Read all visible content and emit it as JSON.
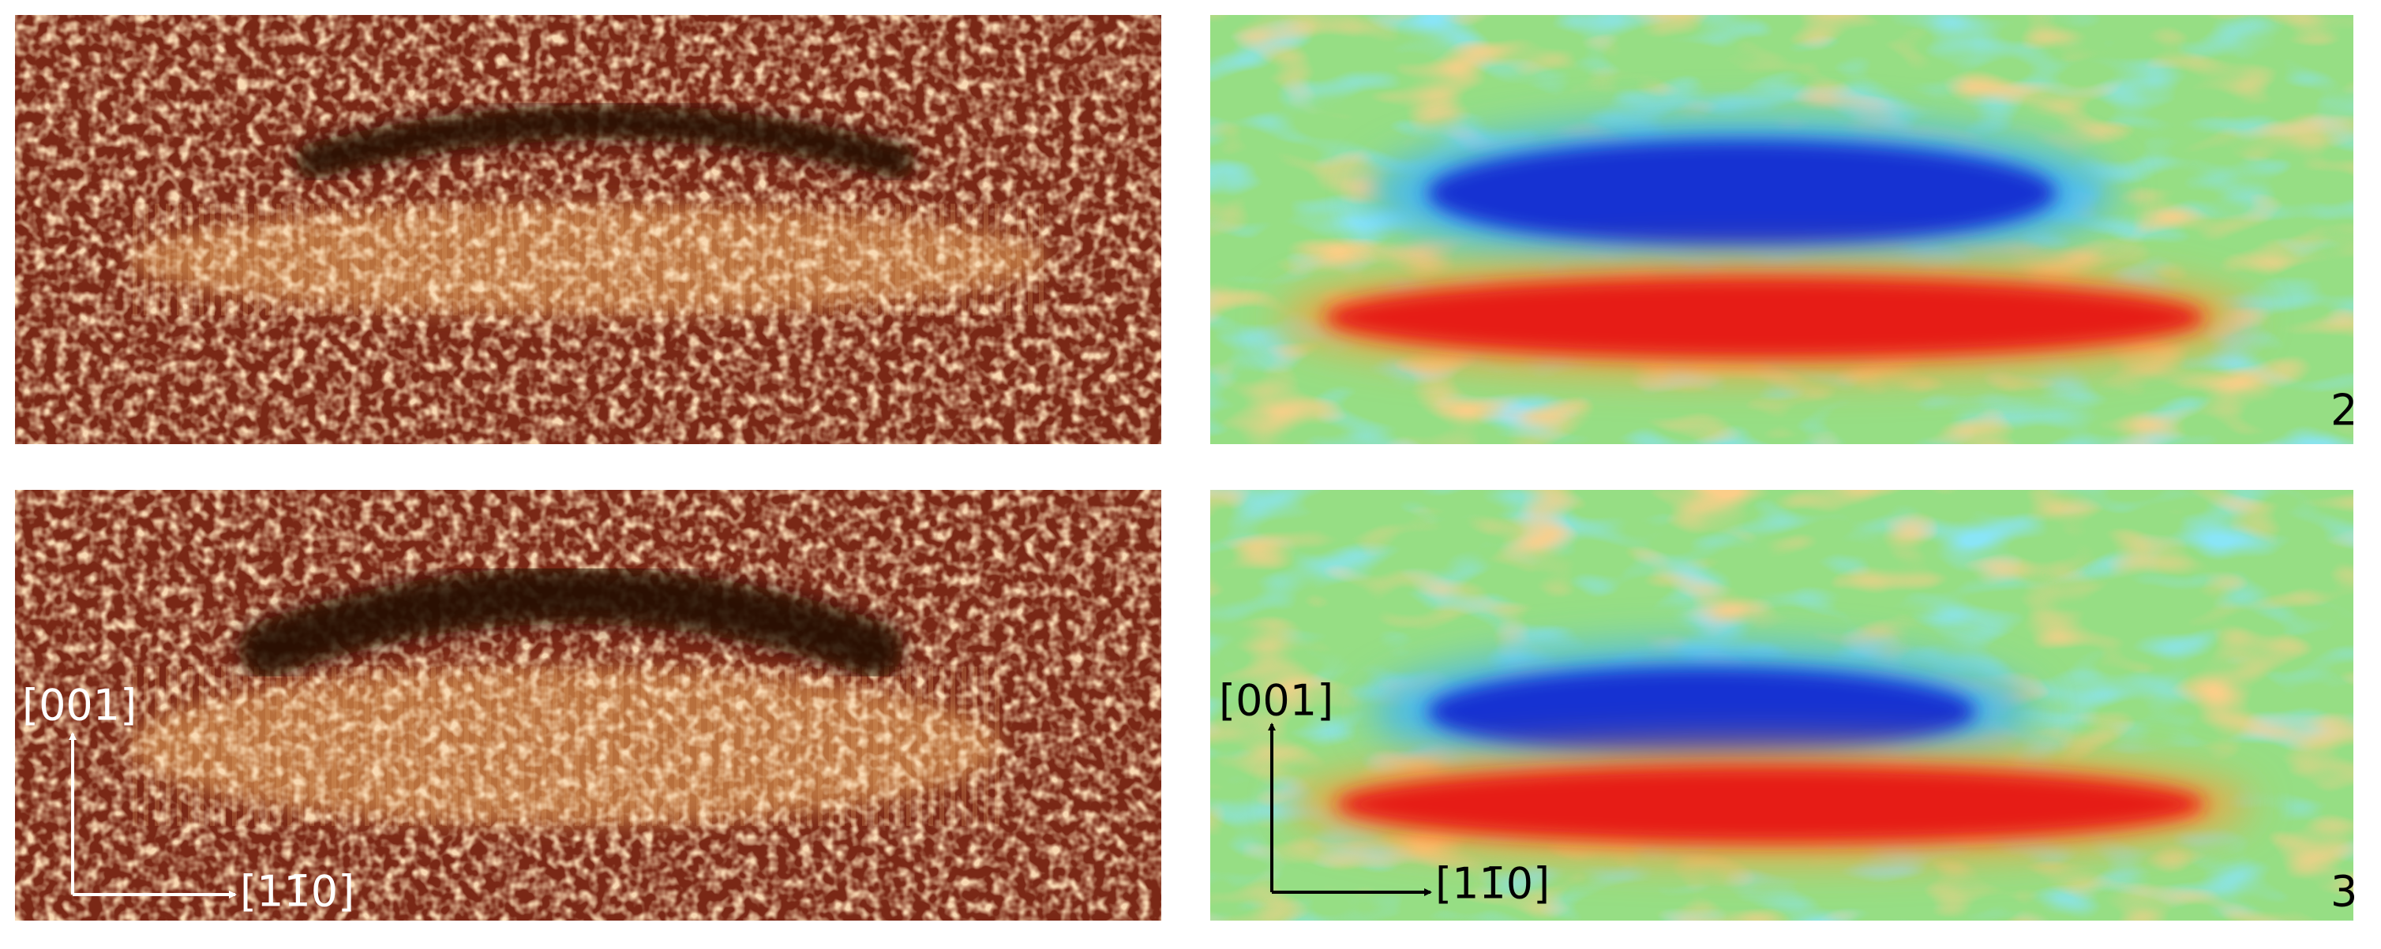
{
  "figure": {
    "panel_numbers": [
      "2",
      "3"
    ],
    "axes": {
      "vertical": "[001]",
      "horizontal": "[11̄0]"
    }
  }
}
